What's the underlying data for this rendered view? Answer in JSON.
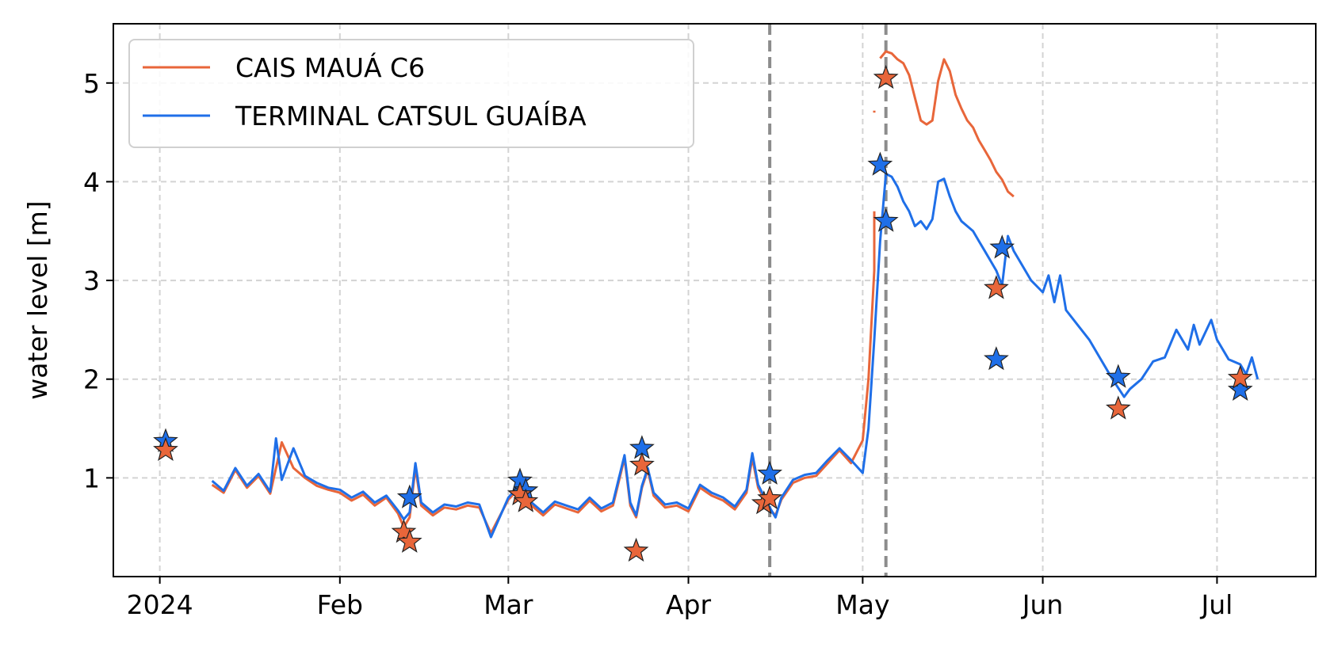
{
  "chart_data": {
    "type": "line",
    "title": "",
    "xlabel": "",
    "ylabel": "water level [m]",
    "xlim": [
      "2023-12-24",
      "2024-07-18"
    ],
    "ylim": [
      0,
      5.6
    ],
    "x_ticks": [
      {
        "date": "2024-01-01",
        "label": "2024"
      },
      {
        "date": "2024-02-01",
        "label": "Feb"
      },
      {
        "date": "2024-03-01",
        "label": "Mar"
      },
      {
        "date": "2024-04-01",
        "label": "Apr"
      },
      {
        "date": "2024-05-01",
        "label": "May"
      },
      {
        "date": "2024-06-01",
        "label": "Jun"
      },
      {
        "date": "2024-07-01",
        "label": "Jul"
      }
    ],
    "y_ticks": [
      1,
      2,
      3,
      4,
      5
    ],
    "grid": true,
    "legend_position": "top-left",
    "vertical_lines": [
      "2024-04-15",
      "2024-05-05"
    ],
    "series": [
      {
        "name": "CAIS MAUÁ C6",
        "color": "#e8663a",
        "segments": [
          [
            [
              "2024-01-10",
              0.93
            ],
            [
              "2024-01-12",
              0.85
            ],
            [
              "2024-01-14",
              1.08
            ],
            [
              "2024-01-16",
              0.9
            ],
            [
              "2024-01-18",
              1.02
            ],
            [
              "2024-01-20",
              0.84
            ],
            [
              "2024-01-22",
              1.36
            ],
            [
              "2024-01-24",
              1.1
            ],
            [
              "2024-01-26",
              1.0
            ],
            [
              "2024-01-28",
              0.92
            ],
            [
              "2024-01-30",
              0.88
            ],
            [
              "2024-02-01",
              0.85
            ],
            [
              "2024-02-03",
              0.77
            ],
            [
              "2024-02-05",
              0.83
            ],
            [
              "2024-02-07",
              0.72
            ],
            [
              "2024-02-09",
              0.8
            ],
            [
              "2024-02-11",
              0.64
            ],
            [
              "2024-02-12",
              0.5
            ],
            [
              "2024-02-13",
              0.6
            ],
            [
              "2024-02-14",
              1.1
            ],
            [
              "2024-02-15",
              0.72
            ],
            [
              "2024-02-17",
              0.62
            ],
            [
              "2024-02-19",
              0.7
            ],
            [
              "2024-02-21",
              0.68
            ],
            [
              "2024-02-23",
              0.72
            ],
            [
              "2024-02-25",
              0.7
            ],
            [
              "2024-02-27",
              0.44
            ],
            [
              "2024-03-01",
              0.78
            ],
            [
              "2024-03-03",
              0.9
            ],
            [
              "2024-03-05",
              0.72
            ],
            [
              "2024-03-07",
              0.62
            ],
            [
              "2024-03-09",
              0.73
            ],
            [
              "2024-03-11",
              0.69
            ],
            [
              "2024-03-13",
              0.65
            ],
            [
              "2024-03-15",
              0.77
            ],
            [
              "2024-03-17",
              0.66
            ],
            [
              "2024-03-19",
              0.72
            ],
            [
              "2024-03-21",
              1.2
            ],
            [
              "2024-03-22",
              0.72
            ],
            [
              "2024-03-23",
              0.6
            ],
            [
              "2024-03-24",
              0.9
            ],
            [
              "2024-03-25",
              1.08
            ],
            [
              "2024-03-26",
              0.82
            ],
            [
              "2024-03-28",
              0.7
            ],
            [
              "2024-03-30",
              0.72
            ],
            [
              "2024-04-01",
              0.66
            ],
            [
              "2024-04-03",
              0.9
            ],
            [
              "2024-04-05",
              0.82
            ],
            [
              "2024-04-07",
              0.77
            ],
            [
              "2024-04-09",
              0.68
            ],
            [
              "2024-04-11",
              0.85
            ],
            [
              "2024-04-12",
              1.2
            ],
            [
              "2024-04-13",
              0.9
            ],
            [
              "2024-04-15",
              0.68
            ],
            [
              "2024-04-16",
              0.62
            ],
            [
              "2024-04-17",
              0.78
            ],
            [
              "2024-04-19",
              0.95
            ],
            [
              "2024-04-21",
              1.0
            ],
            [
              "2024-04-23",
              1.02
            ],
            [
              "2024-04-25",
              1.15
            ],
            [
              "2024-04-27",
              1.28
            ],
            [
              "2024-04-29",
              1.15
            ],
            [
              "2024-05-01",
              1.38
            ],
            [
              "2024-05-02",
              2.0
            ],
            [
              "2024-05-03",
              3.1
            ],
            [
              "2024-05-03",
              3.7
            ]
          ],
          [
            [
              "2024-05-03",
              4.7
            ],
            [
              "2024-05-03",
              4.72
            ]
          ],
          [
            [
              "2024-05-04",
              5.25
            ],
            [
              "2024-05-05",
              5.32
            ],
            [
              "2024-05-06",
              5.3
            ],
            [
              "2024-05-07",
              5.24
            ],
            [
              "2024-05-08",
              5.2
            ],
            [
              "2024-05-09",
              5.08
            ],
            [
              "2024-05-10",
              4.85
            ],
            [
              "2024-05-11",
              4.62
            ],
            [
              "2024-05-12",
              4.58
            ],
            [
              "2024-05-13",
              4.62
            ],
            [
              "2024-05-14",
              5.02
            ],
            [
              "2024-05-15",
              5.24
            ],
            [
              "2024-05-16",
              5.12
            ],
            [
              "2024-05-17",
              4.88
            ],
            [
              "2024-05-18",
              4.74
            ],
            [
              "2024-05-19",
              4.62
            ],
            [
              "2024-05-20",
              4.55
            ],
            [
              "2024-05-21",
              4.42
            ],
            [
              "2024-05-22",
              4.32
            ],
            [
              "2024-05-23",
              4.22
            ],
            [
              "2024-05-24",
              4.1
            ],
            [
              "2024-05-25",
              4.02
            ],
            [
              "2024-05-26",
              3.9
            ],
            [
              "2024-05-27",
              3.85
            ]
          ]
        ]
      },
      {
        "name": "TERMINAL CATSUL GUAÍBA",
        "color": "#1f6fe8",
        "segments": [
          [
            [
              "2024-01-10",
              0.97
            ],
            [
              "2024-01-12",
              0.87
            ],
            [
              "2024-01-14",
              1.1
            ],
            [
              "2024-01-16",
              0.92
            ],
            [
              "2024-01-18",
              1.04
            ],
            [
              "2024-01-20",
              0.86
            ],
            [
              "2024-01-21",
              1.4
            ],
            [
              "2024-01-22",
              0.98
            ],
            [
              "2024-01-24",
              1.3
            ],
            [
              "2024-01-26",
              1.02
            ],
            [
              "2024-01-28",
              0.95
            ],
            [
              "2024-01-30",
              0.9
            ],
            [
              "2024-02-01",
              0.88
            ],
            [
              "2024-02-03",
              0.8
            ],
            [
              "2024-02-05",
              0.86
            ],
            [
              "2024-02-07",
              0.75
            ],
            [
              "2024-02-09",
              0.82
            ],
            [
              "2024-02-11",
              0.67
            ],
            [
              "2024-02-12",
              0.58
            ],
            [
              "2024-02-13",
              0.65
            ],
            [
              "2024-02-14",
              1.15
            ],
            [
              "2024-02-15",
              0.75
            ],
            [
              "2024-02-17",
              0.65
            ],
            [
              "2024-02-19",
              0.73
            ],
            [
              "2024-02-21",
              0.71
            ],
            [
              "2024-02-23",
              0.75
            ],
            [
              "2024-02-25",
              0.73
            ],
            [
              "2024-02-27",
              0.4
            ],
            [
              "2024-03-01",
              0.8
            ],
            [
              "2024-03-03",
              0.93
            ],
            [
              "2024-03-05",
              0.75
            ],
            [
              "2024-03-07",
              0.65
            ],
            [
              "2024-03-09",
              0.76
            ],
            [
              "2024-03-11",
              0.72
            ],
            [
              "2024-03-13",
              0.68
            ],
            [
              "2024-03-15",
              0.8
            ],
            [
              "2024-03-17",
              0.69
            ],
            [
              "2024-03-19",
              0.75
            ],
            [
              "2024-03-21",
              1.23
            ],
            [
              "2024-03-22",
              0.75
            ],
            [
              "2024-03-23",
              0.62
            ],
            [
              "2024-03-24",
              0.92
            ],
            [
              "2024-03-25",
              1.1
            ],
            [
              "2024-03-26",
              0.85
            ],
            [
              "2024-03-28",
              0.73
            ],
            [
              "2024-03-30",
              0.75
            ],
            [
              "2024-04-01",
              0.69
            ],
            [
              "2024-04-03",
              0.93
            ],
            [
              "2024-04-05",
              0.85
            ],
            [
              "2024-04-07",
              0.8
            ],
            [
              "2024-04-09",
              0.71
            ],
            [
              "2024-04-11",
              0.88
            ],
            [
              "2024-04-12",
              1.25
            ],
            [
              "2024-04-13",
              0.93
            ],
            [
              "2024-04-15",
              0.7
            ],
            [
              "2024-04-16",
              0.6
            ],
            [
              "2024-04-17",
              0.8
            ],
            [
              "2024-04-19",
              0.98
            ],
            [
              "2024-04-21",
              1.03
            ],
            [
              "2024-04-23",
              1.05
            ],
            [
              "2024-04-25",
              1.18
            ],
            [
              "2024-04-27",
              1.3
            ],
            [
              "2024-04-29",
              1.18
            ],
            [
              "2024-05-01",
              1.05
            ],
            [
              "2024-05-02",
              1.5
            ],
            [
              "2024-05-03",
              2.4
            ],
            [
              "2024-05-04",
              3.4
            ],
            [
              "2024-05-05",
              4.08
            ],
            [
              "2024-05-06",
              4.05
            ],
            [
              "2024-05-07",
              3.95
            ],
            [
              "2024-05-08",
              3.8
            ],
            [
              "2024-05-09",
              3.7
            ],
            [
              "2024-05-10",
              3.55
            ],
            [
              "2024-05-11",
              3.6
            ],
            [
              "2024-05-12",
              3.52
            ],
            [
              "2024-05-13",
              3.62
            ],
            [
              "2024-05-14",
              4.0
            ],
            [
              "2024-05-15",
              4.03
            ],
            [
              "2024-05-16",
              3.85
            ],
            [
              "2024-05-17",
              3.7
            ],
            [
              "2024-05-18",
              3.6
            ],
            [
              "2024-05-19",
              3.55
            ],
            [
              "2024-05-20",
              3.5
            ],
            [
              "2024-05-21",
              3.4
            ],
            [
              "2024-05-22",
              3.3
            ],
            [
              "2024-05-23",
              3.2
            ],
            [
              "2024-05-24",
              3.1
            ],
            [
              "2024-05-25",
              2.95
            ],
            [
              "2024-05-26",
              3.45
            ],
            [
              "2024-05-27",
              3.3
            ],
            [
              "2024-05-28",
              3.2
            ],
            [
              "2024-05-30",
              3.0
            ],
            [
              "2024-06-01",
              2.88
            ],
            [
              "2024-06-02",
              3.05
            ],
            [
              "2024-06-03",
              2.78
            ],
            [
              "2024-06-04",
              3.05
            ],
            [
              "2024-06-05",
              2.7
            ],
            [
              "2024-06-07",
              2.55
            ],
            [
              "2024-06-09",
              2.4
            ],
            [
              "2024-06-11",
              2.2
            ],
            [
              "2024-06-13",
              2.0
            ],
            [
              "2024-06-15",
              1.82
            ],
            [
              "2024-06-16",
              1.9
            ],
            [
              "2024-06-18",
              2.0
            ],
            [
              "2024-06-20",
              2.18
            ],
            [
              "2024-06-22",
              2.22
            ],
            [
              "2024-06-24",
              2.5
            ],
            [
              "2024-06-26",
              2.3
            ],
            [
              "2024-06-27",
              2.55
            ],
            [
              "2024-06-28",
              2.35
            ],
            [
              "2024-06-30",
              2.6
            ],
            [
              "2024-07-01",
              2.4
            ],
            [
              "2024-07-03",
              2.2
            ],
            [
              "2024-07-05",
              2.15
            ],
            [
              "2024-07-06",
              2.05
            ],
            [
              "2024-07-07",
              2.22
            ],
            [
              "2024-07-08",
              2.0
            ]
          ]
        ]
      }
    ],
    "star_markers": [
      {
        "series": "TERMINAL CATSUL GUAÍBA",
        "color": "#1f6fe8",
        "points": [
          [
            "2024-01-02",
            1.37
          ],
          [
            "2024-02-13",
            0.8
          ],
          [
            "2024-03-03",
            0.97
          ],
          [
            "2024-03-04",
            0.87
          ],
          [
            "2024-03-24",
            1.3
          ],
          [
            "2024-04-15",
            1.04
          ],
          [
            "2024-05-04",
            4.17
          ],
          [
            "2024-05-05",
            3.6
          ],
          [
            "2024-05-24",
            2.2
          ],
          [
            "2024-05-25",
            3.33
          ],
          [
            "2024-06-14",
            2.02
          ],
          [
            "2024-07-05",
            1.89
          ]
        ]
      },
      {
        "series": "CAIS MAUÁ C6",
        "color": "#e8663a",
        "points": [
          [
            "2024-01-02",
            1.28
          ],
          [
            "2024-02-12",
            0.45
          ],
          [
            "2024-02-13",
            0.35
          ],
          [
            "2024-03-03",
            0.83
          ],
          [
            "2024-03-04",
            0.76
          ],
          [
            "2024-03-23",
            0.26
          ],
          [
            "2024-03-24",
            1.13
          ],
          [
            "2024-04-14",
            0.74
          ],
          [
            "2024-04-15",
            0.79
          ],
          [
            "2024-05-05",
            5.05
          ],
          [
            "2024-05-24",
            2.92
          ],
          [
            "2024-06-14",
            1.7
          ],
          [
            "2024-07-05",
            2.01
          ]
        ]
      }
    ]
  }
}
